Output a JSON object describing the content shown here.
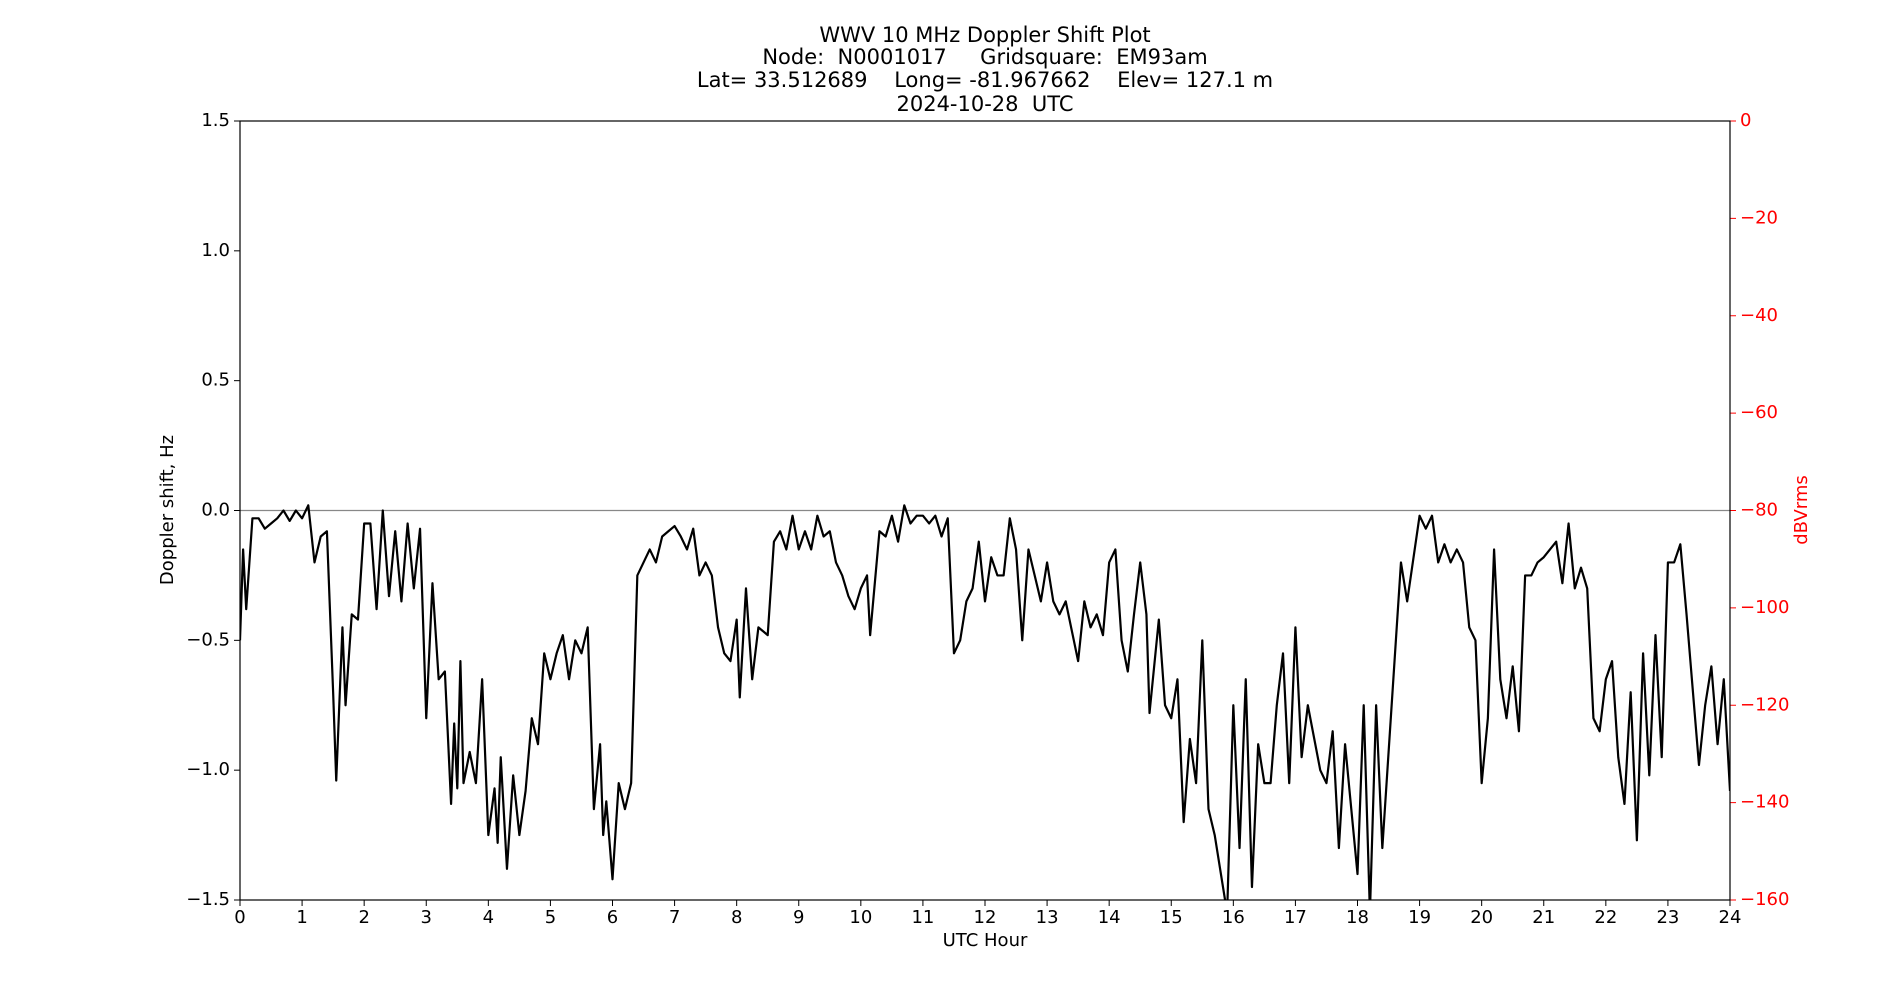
{
  "chart_data": {
    "type": "line",
    "title_lines": [
      "WWV 10 MHz Doppler Shift Plot",
      "Node:  N0001017     Gridsquare:  EM93am",
      "Lat= 33.512689    Long= -81.967662    Elev= 127.1 m",
      "2024-10-28  UTC"
    ],
    "xlabel": "UTC Hour",
    "ylabel": "Doppler shift, Hz",
    "y2label": "dBVrms",
    "y2color": "#ff0000",
    "reference_line": 0,
    "xlim": [
      0,
      24
    ],
    "xticks": [
      0,
      1,
      2,
      3,
      4,
      5,
      6,
      7,
      8,
      9,
      10,
      11,
      12,
      13,
      14,
      15,
      16,
      17,
      18,
      19,
      20,
      21,
      22,
      23,
      24
    ],
    "ylim": [
      -1.5,
      1.5
    ],
    "yticks": [
      {
        "value": -1.5,
        "label": "−1.5"
      },
      {
        "value": -1.0,
        "label": "−1.0"
      },
      {
        "value": -0.5,
        "label": "−0.5"
      },
      {
        "value": 0,
        "label": "0.0"
      },
      0.5,
      {
        "value": 1.0,
        "label": "1.0"
      },
      1.5
    ],
    "y2lim": [
      -160,
      0
    ],
    "y2ticks": [
      {
        "value": -160,
        "label": "−160"
      },
      {
        "value": -140,
        "label": "−140"
      },
      {
        "value": -120,
        "label": "−120"
      },
      {
        "value": -100,
        "label": "−100"
      },
      {
        "value": -80,
        "label": "−80"
      },
      {
        "value": -60,
        "label": "−60"
      },
      {
        "value": -40,
        "label": "−40"
      },
      {
        "value": -20,
        "label": "−20"
      },
      0
    ],
    "x": [
      0,
      0.05,
      0.1,
      0.2,
      0.3,
      0.4,
      0.5,
      0.6,
      0.7,
      0.8,
      0.9,
      1.0,
      1.1,
      1.2,
      1.3,
      1.4,
      1.5,
      1.55,
      1.65,
      1.7,
      1.8,
      1.9,
      2.0,
      2.1,
      2.2,
      2.3,
      2.4,
      2.5,
      2.6,
      2.7,
      2.8,
      2.9,
      3.0,
      3.1,
      3.2,
      3.3,
      3.4,
      3.45,
      3.5,
      3.55,
      3.6,
      3.7,
      3.8,
      3.9,
      4.0,
      4.1,
      4.15,
      4.2,
      4.3,
      4.4,
      4.5,
      4.6,
      4.7,
      4.8,
      4.9,
      5.0,
      5.1,
      5.2,
      5.3,
      5.4,
      5.5,
      5.6,
      5.7,
      5.8,
      5.85,
      5.9,
      6.0,
      6.1,
      6.2,
      6.3,
      6.4,
      6.5,
      6.6,
      6.7,
      6.8,
      6.9,
      7.0,
      7.1,
      7.2,
      7.3,
      7.4,
      7.5,
      7.6,
      7.7,
      7.8,
      7.9,
      8.0,
      8.05,
      8.15,
      8.25,
      8.35,
      8.5,
      8.6,
      8.7,
      8.8,
      8.9,
      9.0,
      9.1,
      9.2,
      9.3,
      9.4,
      9.5,
      9.6,
      9.7,
      9.8,
      9.9,
      10.0,
      10.1,
      10.15,
      10.3,
      10.4,
      10.5,
      10.6,
      10.7,
      10.8,
      10.9,
      11.0,
      11.1,
      11.2,
      11.3,
      11.4,
      11.5,
      11.6,
      11.7,
      11.8,
      11.9,
      12.0,
      12.1,
      12.2,
      12.3,
      12.4,
      12.5,
      12.6,
      12.7,
      12.8,
      12.9,
      13.0,
      13.1,
      13.2,
      13.3,
      13.5,
      13.6,
      13.7,
      13.8,
      13.9,
      14.0,
      14.1,
      14.2,
      14.3,
      14.4,
      14.5,
      14.6,
      14.65,
      14.8,
      14.9,
      15.0,
      15.1,
      15.2,
      15.3,
      15.4,
      15.5,
      15.6,
      15.7,
      15.9,
      16.0,
      16.1,
      16.2,
      16.3,
      16.4,
      16.5,
      16.6,
      16.7,
      16.8,
      16.9,
      17.0,
      17.1,
      17.2,
      17.4,
      17.5,
      17.6,
      17.7,
      17.8,
      18.0,
      18.1,
      18.2,
      18.3,
      18.4,
      18.7,
      18.8,
      19.0,
      19.1,
      19.2,
      19.3,
      19.4,
      19.5,
      19.6,
      19.7,
      19.8,
      19.9,
      20.0,
      20.1,
      20.2,
      20.3,
      20.4,
      20.5,
      20.6,
      20.7,
      20.8,
      20.9,
      21.0,
      21.1,
      21.2,
      21.3,
      21.4,
      21.5,
      21.6,
      21.7,
      21.8,
      21.9,
      22.0,
      22.1,
      22.2,
      22.3,
      22.4,
      22.5,
      22.6,
      22.7,
      22.8,
      22.9,
      23.0,
      23.1,
      23.2,
      23.3,
      23.5,
      23.6,
      23.7,
      23.8,
      23.9,
      24.0
    ],
    "series": [
      {
        "color": "#000000",
        "values": [
          -0.5,
          -0.15,
          -0.38,
          -0.03,
          -0.03,
          -0.07,
          -0.05,
          -0.03,
          0.0,
          -0.04,
          0.0,
          -0.03,
          0.02,
          -0.2,
          -0.1,
          -0.08,
          -0.7,
          -1.04,
          -0.45,
          -0.75,
          -0.4,
          -0.42,
          -0.05,
          -0.05,
          -0.38,
          0.0,
          -0.33,
          -0.08,
          -0.35,
          -0.05,
          -0.3,
          -0.07,
          -0.8,
          -0.28,
          -0.65,
          -0.62,
          -1.13,
          -0.82,
          -1.07,
          -0.58,
          -1.05,
          -0.93,
          -1.05,
          -0.65,
          -1.25,
          -1.07,
          -1.28,
          -0.95,
          -1.38,
          -1.02,
          -1.25,
          -1.08,
          -0.8,
          -0.9,
          -0.55,
          -0.65,
          -0.55,
          -0.48,
          -0.65,
          -0.5,
          -0.55,
          -0.45,
          -1.15,
          -0.9,
          -1.25,
          -1.12,
          -1.42,
          -1.05,
          -1.15,
          -1.05,
          -0.25,
          -0.2,
          -0.15,
          -0.2,
          -0.1,
          -0.08,
          -0.06,
          -0.1,
          -0.15,
          -0.07,
          -0.25,
          -0.2,
          -0.25,
          -0.45,
          -0.55,
          -0.58,
          -0.42,
          -0.72,
          -0.3,
          -0.65,
          -0.45,
          -0.48,
          -0.12,
          -0.08,
          -0.15,
          -0.02,
          -0.15,
          -0.08,
          -0.15,
          -0.02,
          -0.1,
          -0.08,
          -0.2,
          -0.25,
          -0.33,
          -0.38,
          -0.3,
          -0.25,
          -0.48,
          -0.08,
          -0.1,
          -0.02,
          -0.12,
          0.02,
          -0.05,
          -0.02,
          -0.02,
          -0.05,
          -0.02,
          -0.1,
          -0.03,
          -0.55,
          -0.5,
          -0.35,
          -0.3,
          -0.12,
          -0.35,
          -0.18,
          -0.25,
          -0.25,
          -0.03,
          -0.15,
          -0.5,
          -0.15,
          -0.25,
          -0.35,
          -0.2,
          -0.35,
          -0.4,
          -0.35,
          -0.58,
          -0.35,
          -0.45,
          -0.4,
          -0.48,
          -0.2,
          -0.15,
          -0.5,
          -0.62,
          -0.4,
          -0.2,
          -0.4,
          -0.78,
          -0.42,
          -0.75,
          -0.8,
          -0.65,
          -1.2,
          -0.88,
          -1.05,
          -0.5,
          -1.15,
          -1.25,
          -1.55,
          -0.75,
          -1.3,
          -0.65,
          -1.45,
          -0.9,
          -1.05,
          -1.05,
          -0.75,
          -0.55,
          -1.05,
          -0.45,
          -0.95,
          -0.75,
          -1.0,
          -1.05,
          -0.85,
          -1.3,
          -0.9,
          -1.4,
          -0.75,
          -1.55,
          -0.75,
          -1.3,
          -0.2,
          -0.35,
          -0.02,
          -0.07,
          -0.02,
          -0.2,
          -0.13,
          -0.2,
          -0.15,
          -0.2,
          -0.45,
          -0.5,
          -1.05,
          -0.8,
          -0.15,
          -0.65,
          -0.8,
          -0.6,
          -0.85,
          -0.25,
          -0.25,
          -0.2,
          -0.18,
          -0.15,
          -0.12,
          -0.28,
          -0.05,
          -0.3,
          -0.22,
          -0.3,
          -0.8,
          -0.85,
          -0.65,
          -0.58,
          -0.95,
          -1.13,
          -0.7,
          -1.27,
          -0.55,
          -1.02,
          -0.48,
          -0.95,
          -0.2,
          -0.2,
          -0.13,
          -0.4,
          -0.98,
          -0.75,
          -0.6,
          -0.9,
          -0.65,
          -1.08
        ]
      }
    ]
  }
}
